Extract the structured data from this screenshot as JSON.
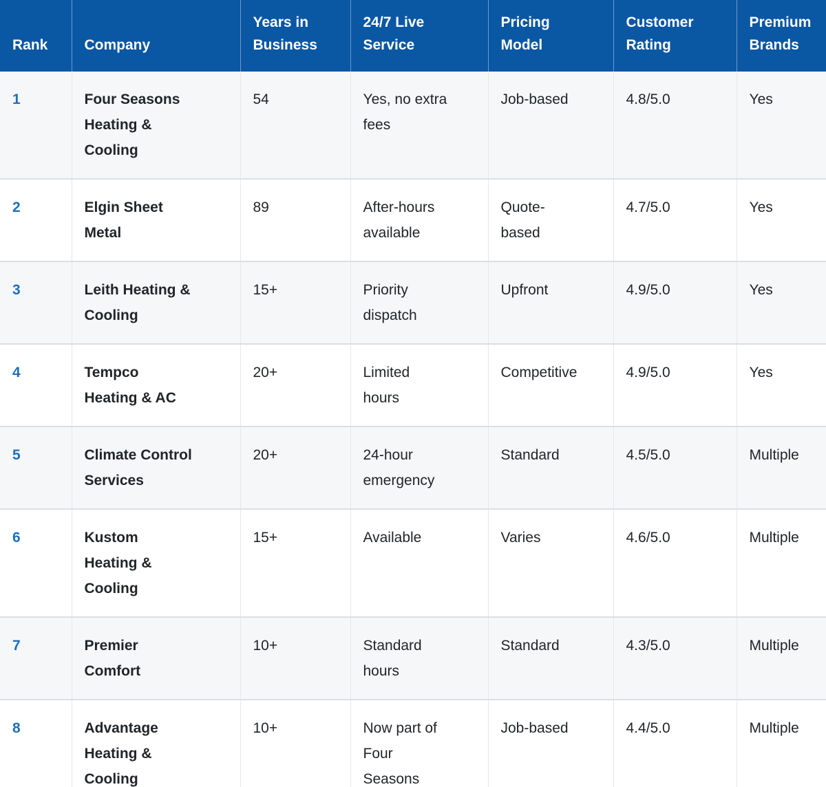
{
  "colors": {
    "header_bg": "#0a57a4",
    "header_text": "#ffffff",
    "header_divider": "#6f9cc7",
    "rank_text": "#1f6fba",
    "body_text": "#212529",
    "stripe_bg": "#f6f7f9",
    "row_border": "#dbdfe4",
    "col_border": "#e4e7ec"
  },
  "table": {
    "headers": [
      "Rank",
      "Company",
      "Years in\nBusiness",
      "24/7 Live\nService",
      "Pricing\nModel",
      "Customer\nRating",
      "Premium\nBrands"
    ],
    "rows": [
      {
        "rank": "1",
        "company": "Four Seasons\nHeating &\nCooling",
        "years": "54",
        "service": "Yes, no extra\nfees",
        "pricing": "Job-based",
        "rating": "4.8/5.0",
        "premium": "Yes"
      },
      {
        "rank": "2",
        "company": "Elgin Sheet\nMetal",
        "years": "89",
        "service": "After-hours\navailable",
        "pricing": "Quote-\nbased",
        "rating": "4.7/5.0",
        "premium": "Yes"
      },
      {
        "rank": "3",
        "company": "Leith Heating &\nCooling",
        "years": "15+",
        "service": "Priority\ndispatch",
        "pricing": "Upfront",
        "rating": "4.9/5.0",
        "premium": "Yes"
      },
      {
        "rank": "4",
        "company": "Tempco\nHeating & AC",
        "years": "20+",
        "service": "Limited\nhours",
        "pricing": "Competitive",
        "rating": "4.9/5.0",
        "premium": "Yes"
      },
      {
        "rank": "5",
        "company": "Climate Control\nServices",
        "years": "20+",
        "service": "24-hour\nemergency",
        "pricing": "Standard",
        "rating": "4.5/5.0",
        "premium": "Multiple"
      },
      {
        "rank": "6",
        "company": "Kustom\nHeating &\nCooling",
        "years": "15+",
        "service": "Available",
        "pricing": "Varies",
        "rating": "4.6/5.0",
        "premium": "Multiple"
      },
      {
        "rank": "7",
        "company": "Premier\nComfort",
        "years": "10+",
        "service": "Standard\nhours",
        "pricing": "Standard",
        "rating": "4.3/5.0",
        "premium": "Multiple"
      },
      {
        "rank": "8",
        "company": "Advantage\nHeating &\nCooling",
        "years": "10+",
        "service": "Now part of\nFour\nSeasons",
        "pricing": "Job-based",
        "rating": "4.4/5.0",
        "premium": "Multiple"
      }
    ]
  },
  "chart_data": {
    "type": "table",
    "title": "HVAC company comparison",
    "columns": [
      "Rank",
      "Company",
      "Years in Business",
      "24/7 Live Service",
      "Pricing Model",
      "Customer Rating",
      "Premium Brands"
    ],
    "rows": [
      [
        "1",
        "Four Seasons Heating & Cooling",
        "54",
        "Yes, no extra fees",
        "Job-based",
        "4.8/5.0",
        "Yes"
      ],
      [
        "2",
        "Elgin Sheet Metal",
        "89",
        "After-hours available",
        "Quote-based",
        "4.7/5.0",
        "Yes"
      ],
      [
        "3",
        "Leith Heating & Cooling",
        "15+",
        "Priority dispatch",
        "Upfront",
        "4.9/5.0",
        "Yes"
      ],
      [
        "4",
        "Tempco Heating & AC",
        "20+",
        "Limited hours",
        "Competitive",
        "4.9/5.0",
        "Yes"
      ],
      [
        "5",
        "Climate Control Services",
        "20+",
        "24-hour emergency",
        "Standard",
        "4.5/5.0",
        "Multiple"
      ],
      [
        "6",
        "Kustom Heating & Cooling",
        "15+",
        "Available",
        "Varies",
        "4.6/5.0",
        "Multiple"
      ],
      [
        "7",
        "Premier Comfort",
        "10+",
        "Standard hours",
        "Standard",
        "4.3/5.0",
        "Multiple"
      ],
      [
        "8",
        "Advantage Heating & Cooling",
        "10+",
        "Now part of Four Seasons",
        "Job-based",
        "4.4/5.0",
        "Multiple"
      ]
    ],
    "customer_ratings_numeric": [
      4.8,
      4.7,
      4.9,
      4.9,
      4.5,
      4.6,
      4.3,
      4.4
    ]
  }
}
